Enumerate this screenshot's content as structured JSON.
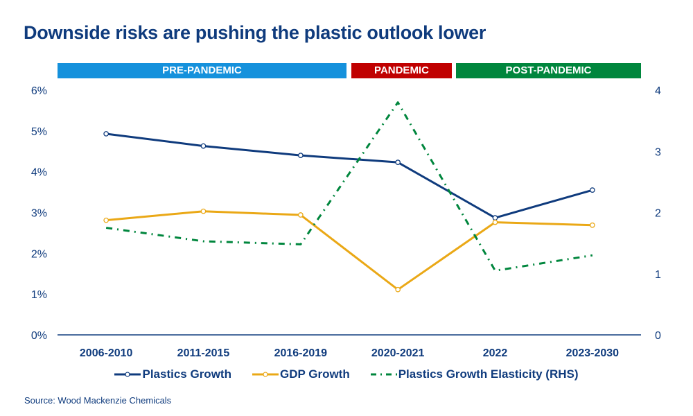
{
  "chart_data": {
    "type": "line",
    "title": "Downside risks are pushing the plastic outlook lower",
    "categories": [
      "2006-2010",
      "2011-2015",
      "2016-2019",
      "2020-2021",
      "2022",
      "2023-2030"
    ],
    "phases": [
      {
        "label": "PRE-PANDEMIC",
        "color": "#1591dc"
      },
      {
        "label": "PANDEMIC",
        "color": "#c00000"
      },
      {
        "label": "POST-PANDEMIC",
        "color": "#00863d"
      }
    ],
    "y_left": {
      "ticks": [
        "0%",
        "1%",
        "2%",
        "3%",
        "4%",
        "5%",
        "6%"
      ],
      "range": [
        0,
        6
      ]
    },
    "y_right": {
      "ticks": [
        "0",
        "1",
        "2",
        "3",
        "4"
      ],
      "range": [
        0,
        4
      ]
    },
    "series": [
      {
        "name": "Plastics Growth",
        "axis": "left",
        "color": "#0f3b7d",
        "style": "solid-marker",
        "values": [
          4.93,
          4.63,
          4.4,
          4.23,
          2.87,
          3.55
        ]
      },
      {
        "name": "GDP Growth",
        "axis": "left",
        "color": "#eaa816",
        "style": "solid-marker",
        "values": [
          2.81,
          3.03,
          2.94,
          1.11,
          2.76,
          2.69
        ]
      },
      {
        "name": "Plastics Growth Elasticity (RHS)",
        "axis": "right",
        "color": "#00863d",
        "style": "dash-dot",
        "values": [
          1.75,
          1.53,
          1.48,
          3.8,
          1.05,
          1.3
        ]
      }
    ],
    "legend_position": "bottom",
    "grid": false
  },
  "source": "Source: Wood Mackenzie Chemicals"
}
